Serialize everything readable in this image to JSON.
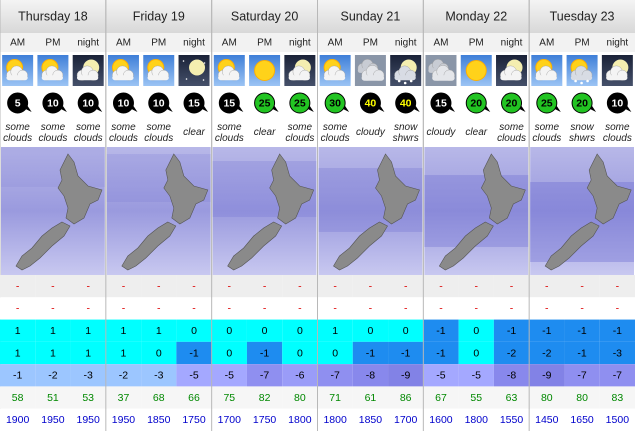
{
  "days": [
    {
      "name": "Thursday 18",
      "periods": [
        {
          "label": "AM",
          "icon": "sun-cloud",
          "wind": 5,
          "wind_fill": "#000",
          "wind_text": "#fff",
          "weather": "some clouds"
        },
        {
          "label": "PM",
          "icon": "sun-cloud",
          "wind": 10,
          "wind_fill": "#000",
          "wind_text": "#fff",
          "weather": "some clouds"
        },
        {
          "label": "night",
          "icon": "moon-cloud",
          "wind": 10,
          "wind_fill": "#000",
          "wind_text": "#fff",
          "weather": "some clouds"
        }
      ]
    },
    {
      "name": "Friday 19",
      "periods": [
        {
          "label": "AM",
          "icon": "sun-cloud",
          "wind": 10,
          "wind_fill": "#000",
          "wind_text": "#fff",
          "weather": "some clouds"
        },
        {
          "label": "PM",
          "icon": "sun-cloud",
          "wind": 10,
          "wind_fill": "#000",
          "wind_text": "#fff",
          "weather": "some clouds"
        },
        {
          "label": "night",
          "icon": "moon",
          "wind": 15,
          "wind_fill": "#000",
          "wind_text": "#fff",
          "weather": "clear"
        }
      ]
    },
    {
      "name": "Saturday 20",
      "periods": [
        {
          "label": "AM",
          "icon": "sun-cloud",
          "wind": 15,
          "wind_fill": "#000",
          "wind_text": "#fff",
          "weather": "some clouds"
        },
        {
          "label": "PM",
          "icon": "sun",
          "wind": 25,
          "wind_fill": "#22c422",
          "wind_text": "#000",
          "weather": "clear"
        },
        {
          "label": "night",
          "icon": "moon-cloud",
          "wind": 25,
          "wind_fill": "#22c422",
          "wind_text": "#000",
          "weather": "some clouds"
        }
      ]
    },
    {
      "name": "Sunday 21",
      "periods": [
        {
          "label": "AM",
          "icon": "sun-cloud",
          "wind": 30,
          "wind_fill": "#22c422",
          "wind_text": "#000",
          "weather": "some clouds"
        },
        {
          "label": "PM",
          "icon": "cloudy",
          "wind": 40,
          "wind_fill": "#000",
          "wind_text": "#ffff00",
          "weather": "cloudy"
        },
        {
          "label": "night",
          "icon": "moon-snow",
          "wind": 40,
          "wind_fill": "#000",
          "wind_text": "#ffff00",
          "weather": "snow shwrs"
        }
      ]
    },
    {
      "name": "Monday 22",
      "periods": [
        {
          "label": "AM",
          "icon": "cloudy",
          "wind": 15,
          "wind_fill": "#000",
          "wind_text": "#fff",
          "weather": "cloudy"
        },
        {
          "label": "PM",
          "icon": "sun",
          "wind": 20,
          "wind_fill": "#22c422",
          "wind_text": "#000",
          "weather": "clear"
        },
        {
          "label": "night",
          "icon": "moon-cloud",
          "wind": 20,
          "wind_fill": "#22c422",
          "wind_text": "#000",
          "weather": "some clouds"
        }
      ]
    },
    {
      "name": "Tuesday 23",
      "periods": [
        {
          "label": "AM",
          "icon": "sun-cloud",
          "wind": 25,
          "wind_fill": "#22c422",
          "wind_text": "#000",
          "weather": "some clouds"
        },
        {
          "label": "PM",
          "icon": "sun-snow",
          "wind": 20,
          "wind_fill": "#22c422",
          "wind_text": "#000",
          "weather": "snow shwrs"
        },
        {
          "label": "night",
          "icon": "moon-cloud",
          "wind": 10,
          "wind_fill": "#000",
          "wind_text": "#fff",
          "weather": "some clouds"
        }
      ]
    }
  ],
  "rows": [
    {
      "values": [
        "-",
        "-",
        "-",
        "-",
        "-",
        "-",
        "-",
        "-",
        "-",
        "-",
        "-",
        "-",
        "-",
        "-",
        "-",
        "-",
        "-",
        "-"
      ],
      "bg": "#eeeeee",
      "text_color": "#dd0000"
    },
    {
      "values": [
        "-",
        "-",
        "-",
        "-",
        "-",
        "-",
        "-",
        "-",
        "-",
        "-",
        "-",
        "-",
        "-",
        "-",
        "-",
        "-",
        "-",
        "-"
      ],
      "bg": "#ffffff",
      "text_color": "#dd0000"
    },
    {
      "values": [
        1,
        1,
        1,
        1,
        1,
        0,
        0,
        0,
        0,
        1,
        0,
        0,
        -1,
        0,
        -1,
        -1,
        -1,
        -1
      ],
      "text_color": "#000",
      "colors": [
        "#00ffff",
        "#00ffff",
        "#00ffff",
        "#00ffff",
        "#00ffff",
        "#00ffff",
        "#00ffff",
        "#00ffff",
        "#00ffff",
        "#00ffff",
        "#00ffff",
        "#00ffff",
        "#1e8cf0",
        "#00ffff",
        "#1e8cf0",
        "#1e8cf0",
        "#1e8cf0",
        "#1e8cf0"
      ]
    },
    {
      "values": [
        1,
        1,
        1,
        1,
        0,
        -1,
        0,
        -1,
        0,
        0,
        -1,
        -1,
        -1,
        0,
        -2,
        -2,
        -1,
        -3
      ],
      "text_color": "#000",
      "colors": [
        "#00ffff",
        "#00ffff",
        "#00ffff",
        "#00ffff",
        "#00ffff",
        "#1e8cf0",
        "#00ffff",
        "#1e8cf0",
        "#00ffff",
        "#00ffff",
        "#1e8cf0",
        "#1e8cf0",
        "#1e8cf0",
        "#00ffff",
        "#1e8cf0",
        "#1e8cf0",
        "#1e8cf0",
        "#1e8cf0"
      ]
    },
    {
      "values": [
        -1,
        -2,
        -3,
        -2,
        -3,
        -5,
        -5,
        -7,
        -6,
        -7,
        -8,
        -9,
        -5,
        -5,
        -8,
        -9,
        -7,
        -7
      ],
      "text_color": "#000",
      "colors": [
        "#9cc6ff",
        "#9cc6ff",
        "#9cc6ff",
        "#9cc6ff",
        "#9cc6ff",
        "#a4a8ff",
        "#a4a8ff",
        "#8f8ff0",
        "#9a9cf8",
        "#8f8ff0",
        "#8888ec",
        "#8282e6",
        "#a4a8ff",
        "#a4a8ff",
        "#8888ec",
        "#8282e6",
        "#8f8ff0",
        "#8f8ff0"
      ]
    },
    {
      "values": [
        58,
        51,
        53,
        37,
        68,
        66,
        75,
        82,
        80,
        71,
        61,
        86,
        67,
        55,
        63,
        80,
        80,
        83
      ],
      "bg": "#f6f6f6",
      "text_color": "#008800"
    },
    {
      "values": [
        1900,
        1950,
        1950,
        1950,
        1850,
        1750,
        1700,
        1750,
        1800,
        1800,
        1850,
        1700,
        1600,
        1800,
        1550,
        1450,
        1650,
        1500
      ],
      "bg": "#ffffff",
      "text_color": "#0000cc"
    }
  ]
}
